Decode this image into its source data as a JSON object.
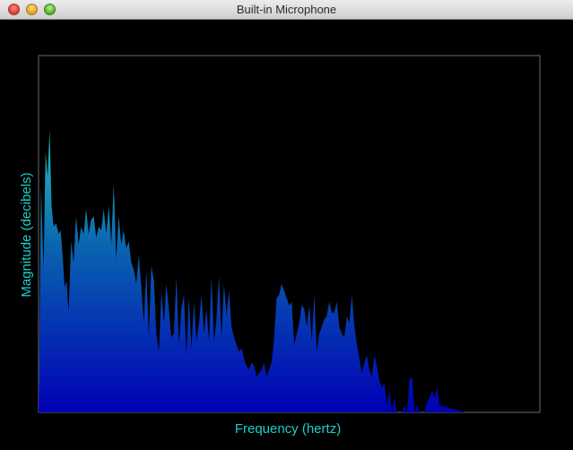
{
  "window": {
    "title": "Built-in Microphone"
  },
  "colors": {
    "background": "#000000",
    "label": "#1bd0c8",
    "plot_border": "#6a6a6a",
    "fill_top": "#24c4c4",
    "fill_mid": "#0a66b0",
    "fill_bottom": "#0000b4"
  },
  "chart_data": {
    "type": "area",
    "title": "",
    "xlabel": "Frequency (hertz)",
    "ylabel": "Magnitude (decibels)",
    "xlim": [
      0,
      100
    ],
    "ylim": [
      0,
      100
    ],
    "grid": false,
    "x": [
      0,
      0.5,
      1,
      1.4,
      1.8,
      2.2,
      2.6,
      3.0,
      3.5,
      4.0,
      4.4,
      4.8,
      5.2,
      5.6,
      6.0,
      6.5,
      7.0,
      7.5,
      8.0,
      8.5,
      9.0,
      9.5,
      10.0,
      10.5,
      11.0,
      11.5,
      12.0,
      12.5,
      13.0,
      13.5,
      14.0,
      14.5,
      15.0,
      15.5,
      16.0,
      16.5,
      17.0,
      17.5,
      18.0,
      18.5,
      19.0,
      19.5,
      20.0,
      20.5,
      21.0,
      21.5,
      22.0,
      22.5,
      23.0,
      23.5,
      24.0,
      24.5,
      25.0,
      25.5,
      26.0,
      26.5,
      27.0,
      27.5,
      28.0,
      28.5,
      29.0,
      29.5,
      30.0,
      30.5,
      31.0,
      31.5,
      32.0,
      32.5,
      33.0,
      33.5,
      34.0,
      34.5,
      35.0,
      35.5,
      36.0,
      36.5,
      37.0,
      37.5,
      38.0,
      38.5,
      39.0,
      39.5,
      40.0,
      40.5,
      41.0,
      41.5,
      42.0,
      42.5,
      43.0,
      43.5,
      44.0,
      44.5,
      45.0,
      45.5,
      46.0,
      46.5,
      47.0,
      47.5,
      48.0,
      48.5,
      49.0,
      49.5,
      50.0,
      50.5,
      51.0,
      51.5,
      52.0,
      52.5,
      53.0,
      53.5,
      54.0,
      54.5,
      55.0,
      55.5,
      56.0,
      56.5,
      57.0,
      57.5,
      58.0,
      58.5,
      59.0,
      59.5,
      60.0,
      60.5,
      61.0,
      61.5,
      62.0,
      62.5,
      63.0,
      63.5,
      64.0,
      64.5,
      65.0,
      65.5,
      66.0,
      66.5,
      67.0,
      67.5,
      68.0,
      68.5,
      69.0,
      69.5,
      70.0,
      70.5,
      71.0,
      71.5,
      72.0,
      72.5,
      73.0,
      73.5,
      74.0,
      74.5,
      75.0,
      75.5,
      76.0,
      76.5,
      77.0,
      77.5,
      78.0,
      78.5,
      79.0,
      79.5,
      80.0,
      85.0,
      90.0,
      95.0,
      100.0
    ],
    "y": [
      0,
      63,
      40,
      73,
      66,
      79,
      58,
      52,
      53,
      50,
      51,
      44,
      35,
      37,
      28,
      48,
      42,
      55,
      47,
      52,
      50,
      57,
      50,
      54,
      55,
      49,
      52,
      51,
      57,
      50,
      58,
      47,
      64,
      43,
      55,
      47,
      51,
      46,
      48,
      42,
      40,
      36,
      44,
      35,
      25,
      40,
      21,
      41,
      37,
      22,
      17,
      34,
      25,
      36,
      29,
      21,
      22,
      38,
      19,
      29,
      33,
      16,
      32,
      18,
      31,
      20,
      25,
      33,
      22,
      29,
      20,
      38,
      20,
      26,
      38,
      21,
      36,
      27,
      34,
      24,
      21,
      19,
      17,
      18,
      15,
      13,
      12,
      14,
      13,
      10,
      11,
      12,
      14,
      10,
      12,
      14,
      21,
      32,
      33,
      36,
      34,
      32,
      30,
      31,
      19,
      22,
      25,
      30,
      29,
      24,
      30,
      20,
      33,
      17,
      22,
      24,
      26,
      27,
      31,
      28,
      28,
      31,
      24,
      22,
      21,
      27,
      25,
      33,
      24,
      19,
      15,
      11,
      14,
      16,
      12,
      10,
      16,
      13,
      9,
      7,
      8,
      2,
      6,
      0,
      4,
      0,
      0,
      0,
      2,
      0,
      9,
      10,
      0,
      2,
      0,
      0,
      0,
      3,
      4,
      6,
      4,
      7,
      2,
      0,
      0,
      0,
      0
    ]
  }
}
